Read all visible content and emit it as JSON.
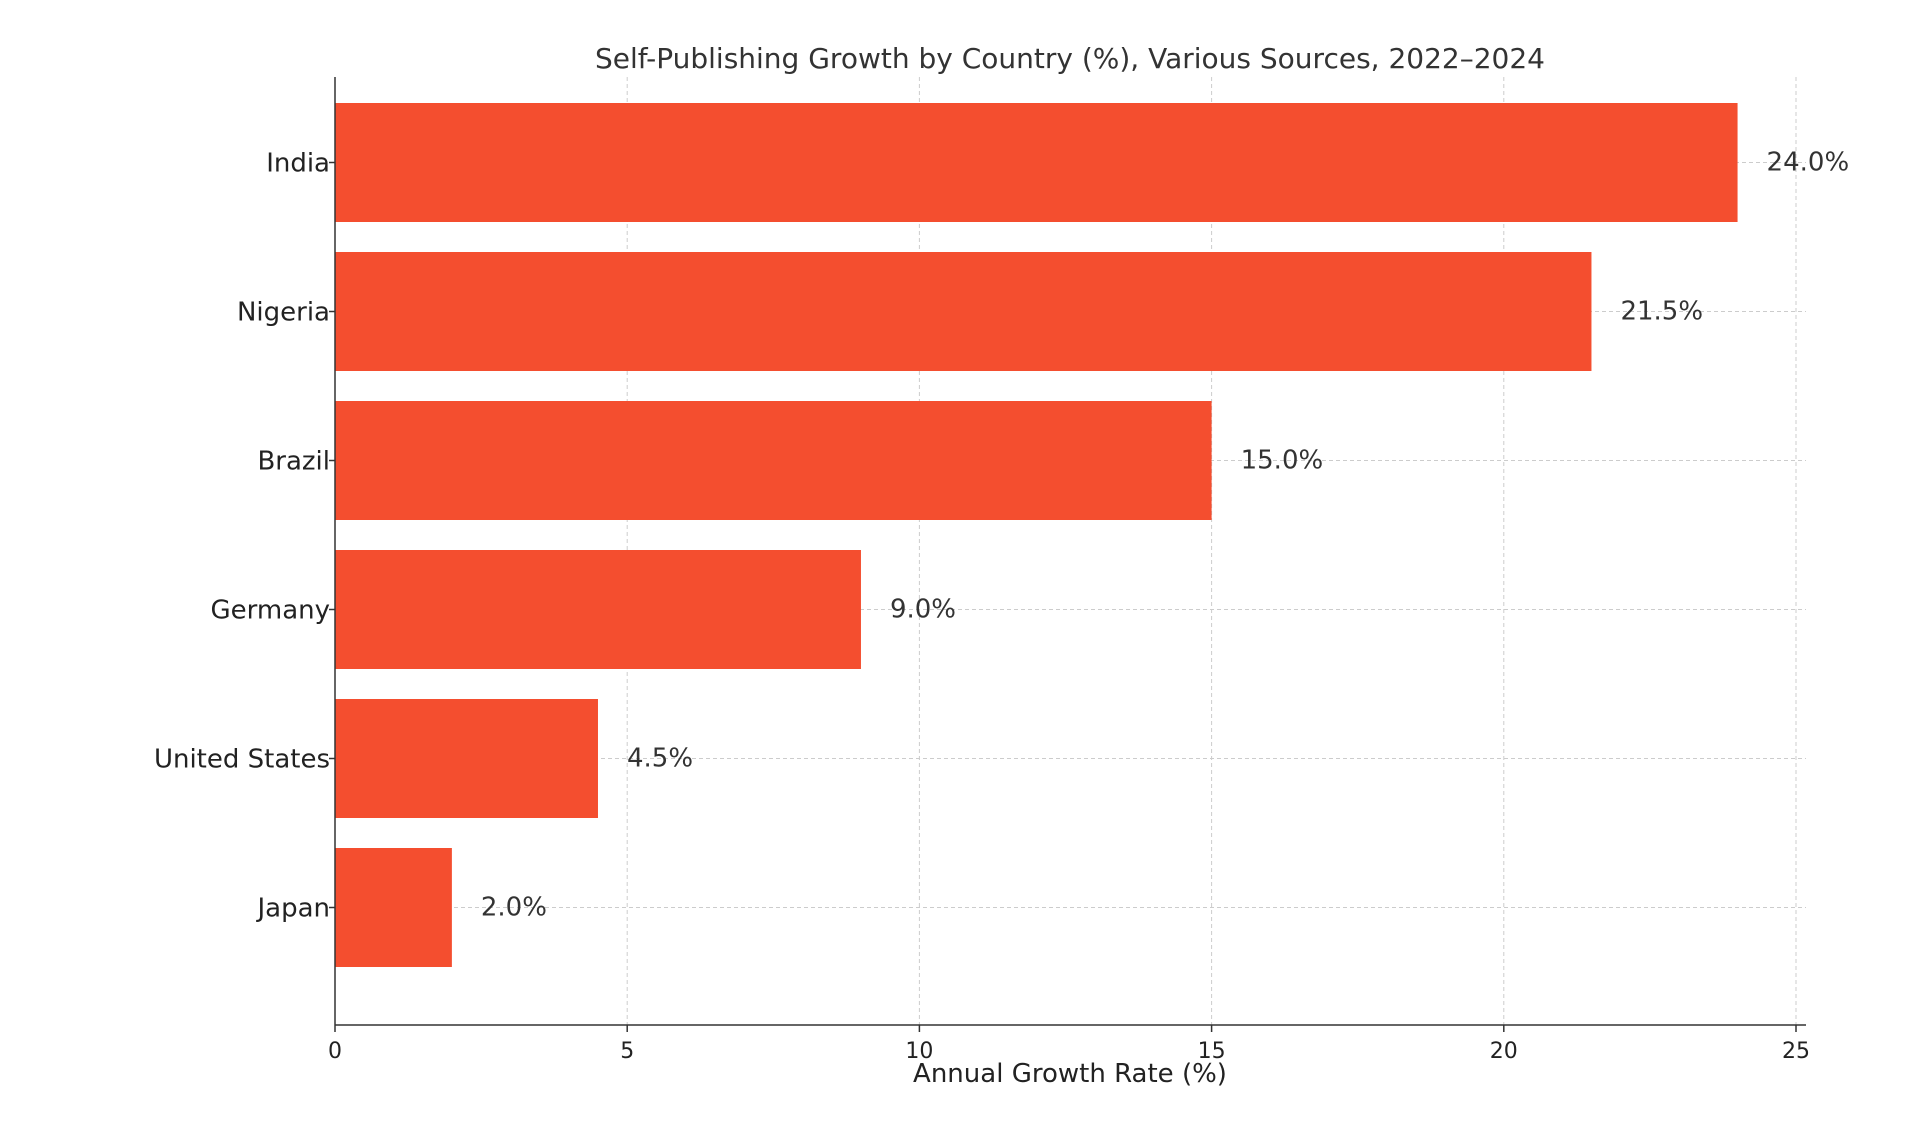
{
  "chart_data": {
    "type": "bar",
    "orientation": "horizontal",
    "title": "Self-Publishing Growth by Country (%), Various Sources, 2022–2024",
    "xlabel": "Annual Growth Rate (%)",
    "ylabel": "",
    "categories": [
      "India",
      "Nigeria",
      "Brazil",
      "Germany",
      "United States",
      "Japan"
    ],
    "values": [
      24.0,
      21.5,
      15.0,
      9.0,
      4.5,
      2.0
    ],
    "value_labels": [
      "24.0%",
      "21.5%",
      "15.0%",
      "9.0%",
      "4.5%",
      "2.0%"
    ],
    "xlim": [
      0,
      25
    ],
    "xticks": [
      0,
      5,
      10,
      15,
      20,
      25
    ],
    "xtick_labels": [
      "0",
      "5",
      "10",
      "15",
      "20",
      "25"
    ],
    "grid": true,
    "legend": "none",
    "colors": {
      "bar": "#f44e2f"
    }
  }
}
